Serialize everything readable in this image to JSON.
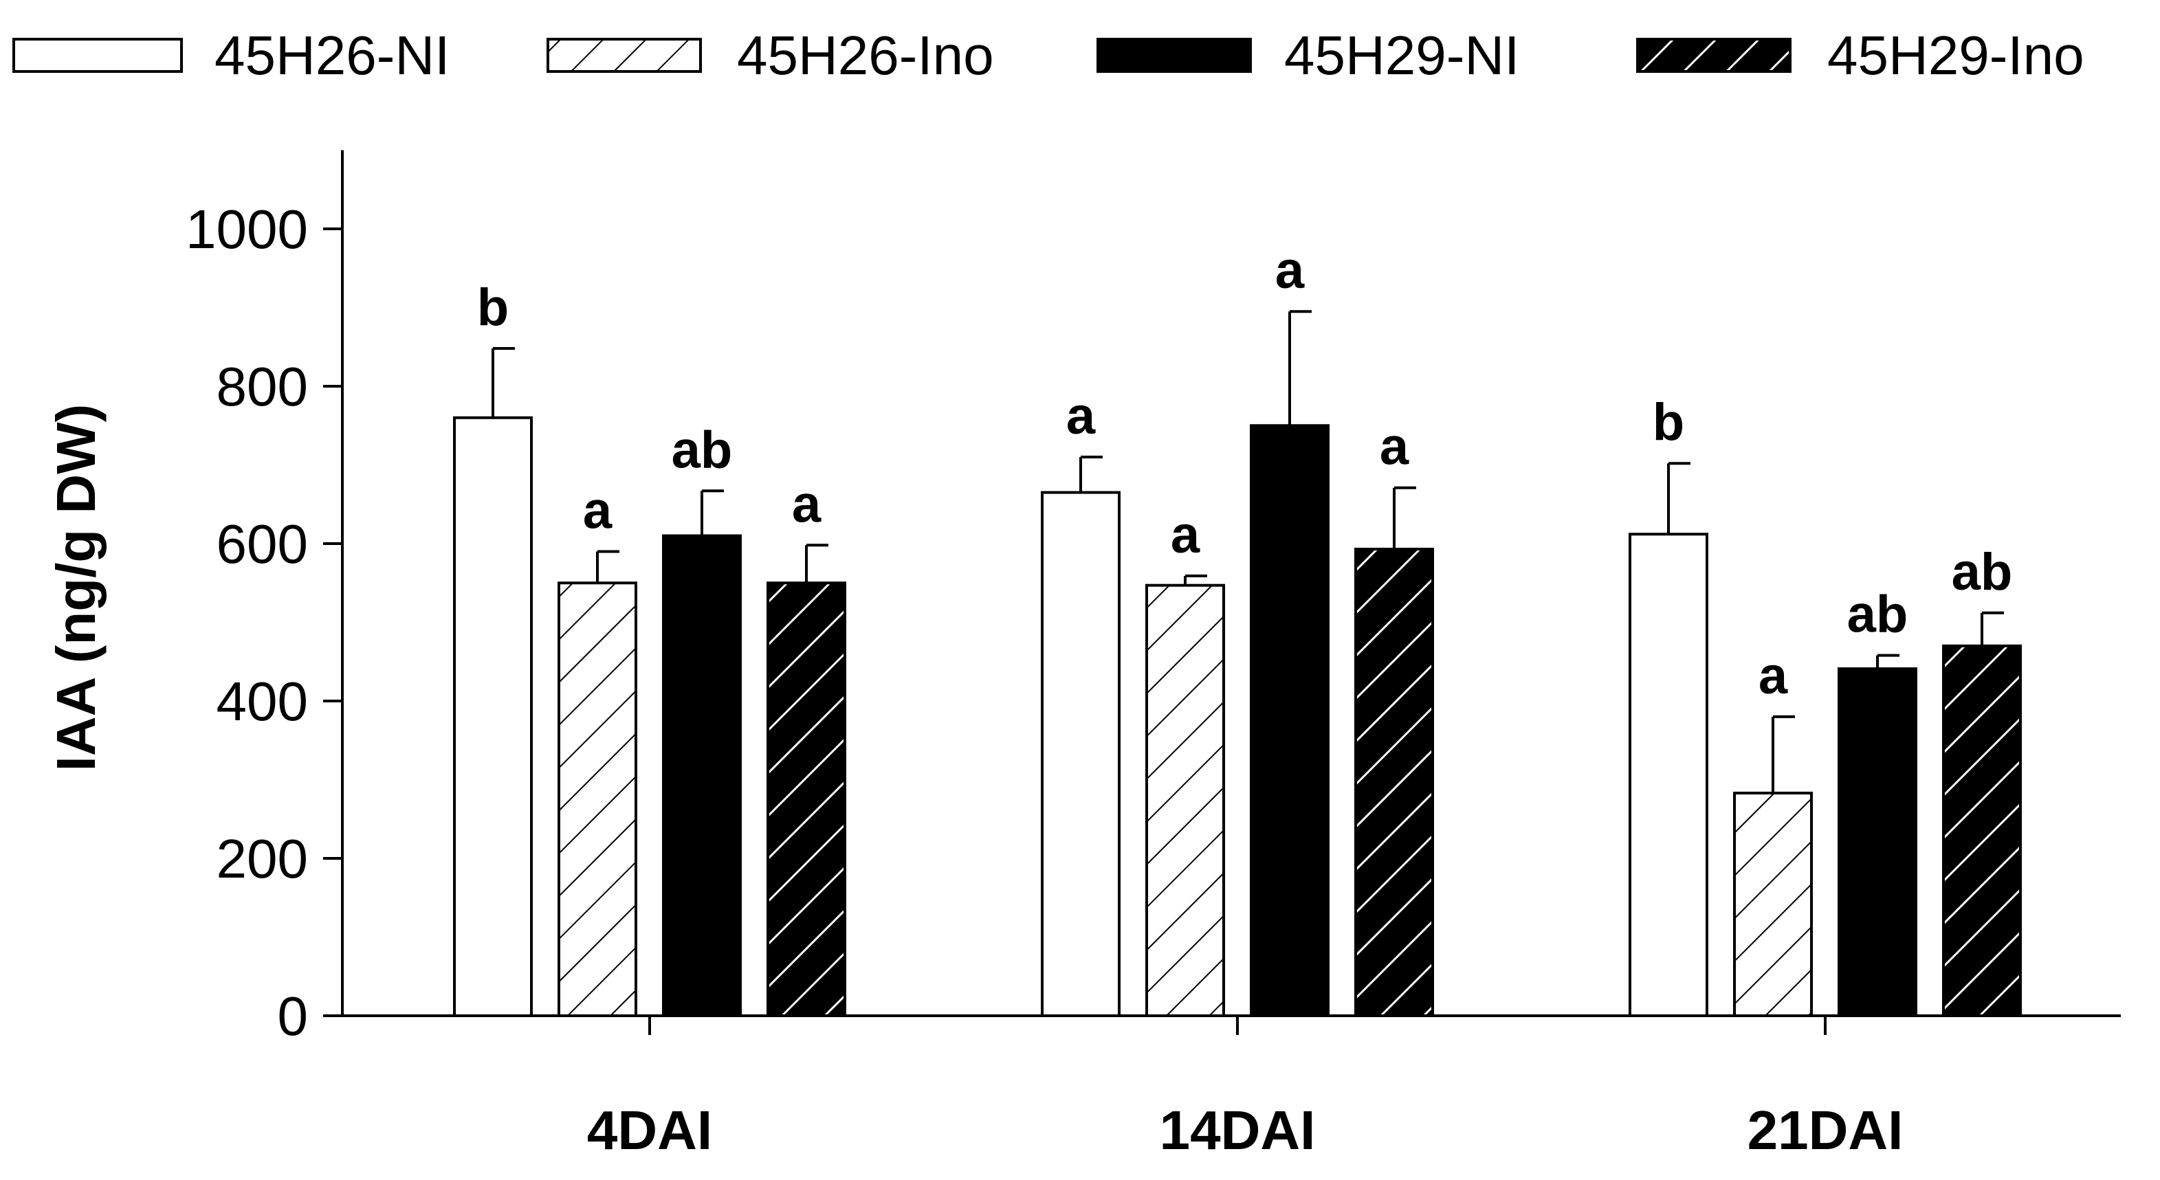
{
  "chart_data": {
    "type": "bar",
    "title": "",
    "xlabel": "",
    "ylabel": "IAA (ng/g DW)",
    "ylim": [
      0,
      1100
    ],
    "yticks": [
      0,
      200,
      400,
      600,
      800,
      1000
    ],
    "grid": false,
    "legend_position": "top",
    "categories": [
      "4DAI",
      "14DAI",
      "21DAI"
    ],
    "series": [
      {
        "name": "45H26-NI",
        "fill": "white",
        "values": [
          760,
          665,
          612
        ],
        "errors": [
          88,
          45,
          90
        ],
        "labels": [
          "b",
          "a",
          "b"
        ]
      },
      {
        "name": "45H26-Ino",
        "fill": "white-hatched",
        "values": [
          550,
          547,
          283
        ],
        "errors": [
          40,
          12,
          97
        ],
        "labels": [
          "a",
          "a",
          "a"
        ]
      },
      {
        "name": "45H29-NI",
        "fill": "black",
        "values": [
          610,
          750,
          441
        ],
        "errors": [
          57,
          145,
          17
        ],
        "labels": [
          "ab",
          "a",
          "ab"
        ]
      },
      {
        "name": "45H29-Ino",
        "fill": "black-hatched",
        "values": [
          550,
          593,
          470
        ],
        "errors": [
          48,
          78,
          42
        ],
        "labels": [
          "a",
          "a",
          "ab"
        ]
      }
    ]
  }
}
